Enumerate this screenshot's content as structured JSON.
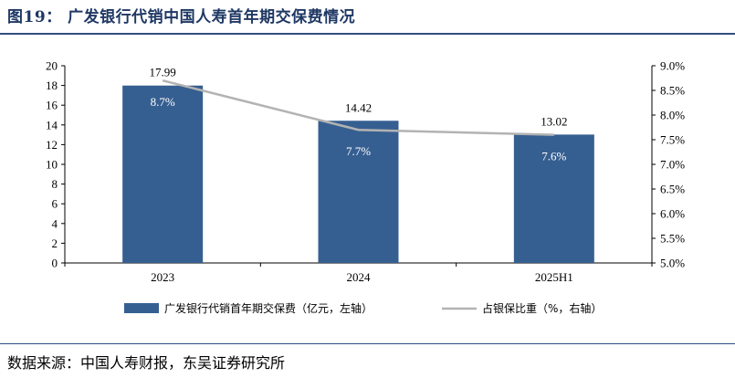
{
  "header": {
    "title": "图19：  广发银行代销中国人寿首年期交保费情况"
  },
  "footer": {
    "source": "数据来源：中国人寿财报，东吴证券研究所"
  },
  "colors": {
    "bar": "#365f91",
    "line": "#b3b3b3",
    "title": "#1f3864"
  },
  "chart_data": {
    "type": "bar",
    "categories": [
      "2023",
      "2024",
      "2025H1"
    ],
    "series": [
      {
        "name": "广发银行代销首年期交保费（亿元，左轴）",
        "type": "bar",
        "axis": "left",
        "values": [
          17.99,
          14.42,
          13.02
        ],
        "labels": [
          "17.99",
          "14.42",
          "13.02"
        ]
      },
      {
        "name": "占银保比重（%，右轴）",
        "type": "line",
        "axis": "right",
        "values": [
          8.7,
          7.7,
          7.6
        ],
        "labels": [
          "8.7%",
          "7.7%",
          "7.6%"
        ]
      }
    ],
    "y_left": {
      "min": 0,
      "max": 20,
      "ticks": [
        "0",
        "2",
        "4",
        "6",
        "8",
        "10",
        "12",
        "14",
        "16",
        "18",
        "20"
      ]
    },
    "y_right": {
      "min": 5.0,
      "max": 9.0,
      "ticks": [
        "5.0%",
        "5.5%",
        "6.0%",
        "6.5%",
        "7.0%",
        "7.5%",
        "8.0%",
        "8.5%",
        "9.0%"
      ]
    },
    "grid": false,
    "legend_position": "bottom"
  }
}
